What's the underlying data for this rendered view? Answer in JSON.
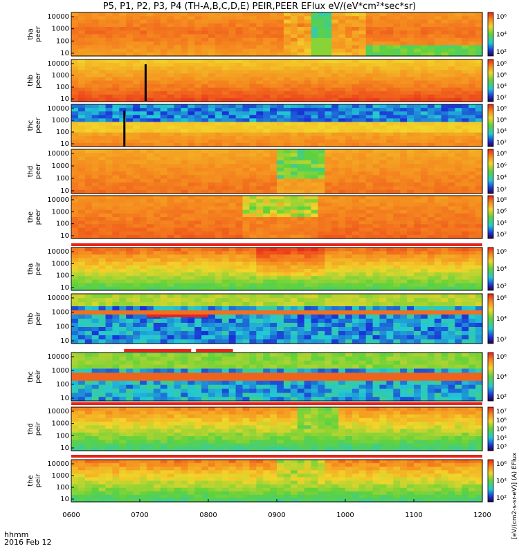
{
  "title_text": "P5, P1, P2, P3, P4 (TH-A,B,C,D,E) PEIR,PEER EFlux eV/(eV*cm²*sec*sr)",
  "time_label": "hhmm",
  "date_label": "2016 Feb 12",
  "colorbar_title": "[eV/(cm2-s-sr-eV)] (A) EFlux",
  "chart_data": {
    "type": "heatmap",
    "x_ticks": [
      "0600",
      "0700",
      "0800",
      "0900",
      "1000",
      "1100",
      "1200"
    ],
    "x_range": [
      600,
      1200
    ],
    "y_scale": "log",
    "panels": [
      {
        "label_top": "tha",
        "label_bot": "peer",
        "y_ticks": [
          "10",
          "100",
          "1000",
          "10000"
        ],
        "cbar_ticks": [
          "10²",
          "10⁴",
          "10⁶"
        ],
        "style": "peer_a"
      },
      {
        "label_top": "thb",
        "label_bot": "peer",
        "y_ticks": [
          "10",
          "100",
          "1000",
          "10000"
        ],
        "cbar_ticks": [
          "10²",
          "10⁴",
          "10⁶",
          "10⁸"
        ],
        "style": "peer_b"
      },
      {
        "label_top": "thc",
        "label_bot": "peer",
        "y_ticks": [
          "10",
          "100",
          "1000",
          "10000"
        ],
        "cbar_ticks": [
          "10²",
          "10⁴",
          "10⁶",
          "10⁸"
        ],
        "style": "peer_c"
      },
      {
        "label_top": "thd",
        "label_bot": "peer",
        "y_ticks": [
          "10",
          "100",
          "1000",
          "10000"
        ],
        "cbar_ticks": [
          "10²",
          "10⁴",
          "10⁶",
          "10⁸"
        ],
        "style": "peer_d"
      },
      {
        "label_top": "the",
        "label_bot": "peer",
        "y_ticks": [
          "10",
          "100",
          "1000",
          "10000"
        ],
        "cbar_ticks": [
          "10²",
          "10⁴",
          "10⁶",
          "10⁸"
        ],
        "style": "peer_e"
      },
      {
        "label_top": "tha",
        "label_bot": "peir",
        "y_ticks": [
          "10",
          "100",
          "1000",
          "10000"
        ],
        "cbar_ticks": [
          "10²",
          "10⁴",
          "10⁶"
        ],
        "style": "peir_a"
      },
      {
        "label_top": "thb",
        "label_bot": "peir",
        "y_ticks": [
          "10",
          "100",
          "1000",
          "10000"
        ],
        "cbar_ticks": [
          "10²",
          "10⁴",
          "10⁶"
        ],
        "style": "peir_b"
      },
      {
        "label_top": "thc",
        "label_bot": "peir",
        "y_ticks": [
          "10",
          "100",
          "1000",
          "10000"
        ],
        "cbar_ticks": [
          "10²",
          "10⁴",
          "10⁶"
        ],
        "style": "peir_c"
      },
      {
        "label_top": "thd",
        "label_bot": "peir",
        "y_ticks": [
          "10",
          "100",
          "1000",
          "10000"
        ],
        "cbar_ticks": [
          "10³",
          "10⁴",
          "10⁵",
          "10⁶",
          "10⁷"
        ],
        "style": "peir_d"
      },
      {
        "label_top": "the",
        "label_bot": "peir",
        "y_ticks": [
          "10",
          "100",
          "1000",
          "10000"
        ],
        "cbar_ticks": [
          "10²",
          "10⁴",
          "10⁶"
        ],
        "style": "peir_e"
      }
    ],
    "colors": {
      "red": "#e8231a",
      "orange": "#f58a1f",
      "yellow": "#f2d52a",
      "green": "#5fd23c",
      "cyan": "#22c8d6",
      "blue": "#1a2fd8",
      "navy": "#111177",
      "black": "#000000"
    }
  }
}
